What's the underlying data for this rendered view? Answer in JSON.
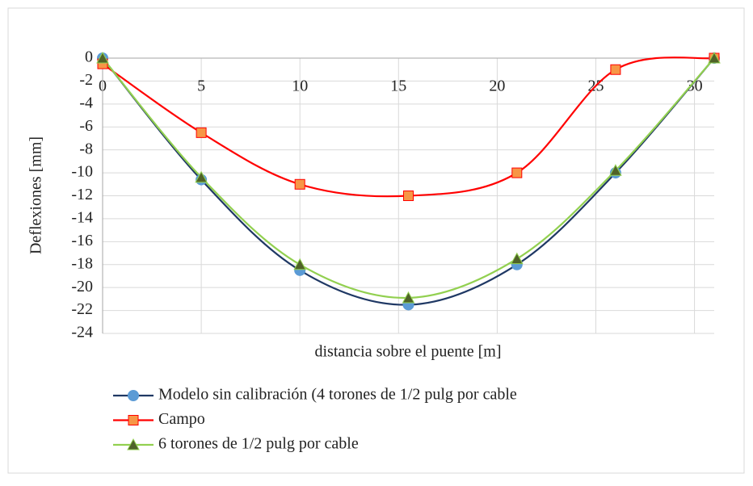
{
  "chart_data": {
    "type": "line",
    "xlabel": "distancia sobre el puente [m]",
    "ylabel": "Deflexiones [mm]",
    "xlim": [
      0,
      31
    ],
    "xticks": [
      0,
      5,
      10,
      15,
      20,
      25,
      30
    ],
    "ylim": [
      -24,
      0
    ],
    "yticks": [
      0,
      -2,
      -4,
      -6,
      -8,
      -10,
      -12,
      -14,
      -16,
      -18,
      -20,
      -22,
      -24
    ],
    "grid": true,
    "legend": "bottom",
    "series": [
      {
        "name": "Modelo sin calibración (4 torones de 1/2 pulg por cable",
        "color": "#1f3864",
        "marker": "circle",
        "marker_color": "#5b9bd5",
        "x": [
          0,
          5,
          10,
          15.5,
          21,
          26,
          31
        ],
        "values": [
          0,
          -10.6,
          -18.5,
          -21.5,
          -18,
          -10,
          0
        ]
      },
      {
        "name": "Campo",
        "color": "#ff0000",
        "marker": "square",
        "marker_color": "#f79646",
        "x": [
          0,
          5,
          10,
          15.5,
          21,
          26,
          31
        ],
        "values": [
          -0.5,
          -6.5,
          -11,
          -12,
          -10,
          -1,
          0
        ]
      },
      {
        "name": "6 torones de 1/2 pulg por cable",
        "color": "#92d050",
        "marker": "triangle",
        "marker_color": "#4f6228",
        "x": [
          0,
          5,
          10,
          15.5,
          21,
          26,
          31
        ],
        "values": [
          0,
          -10.4,
          -18,
          -20.9,
          -17.5,
          -9.8,
          0
        ]
      }
    ]
  }
}
